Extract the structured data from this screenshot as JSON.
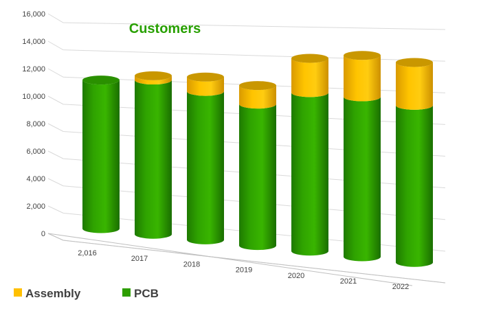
{
  "chart_data": {
    "type": "bar",
    "style": "3d-stacked-cylinder",
    "title": "Customers",
    "categories": [
      "2,016",
      "2017",
      "2018",
      "2019",
      "2020",
      "2021",
      "2022"
    ],
    "series": [
      {
        "name": "PCB",
        "color": "#2d9e00",
        "values": [
          10400,
          10800,
          10400,
          9900,
          11100,
          11200,
          11000
        ]
      },
      {
        "name": "Assembly",
        "color": "#ffc000",
        "values": [
          0,
          300,
          1000,
          1300,
          2400,
          2900,
          3000
        ]
      }
    ],
    "ylim": [
      0,
      16000
    ],
    "y_ticks": [
      "0",
      "2,000",
      "4,000",
      "6,000",
      "8,000",
      "10,000",
      "12,000",
      "14,000",
      "16,000"
    ],
    "grid": true,
    "legend_position": "bottom-left",
    "legend": [
      {
        "label": "Assembly",
        "color": "#ffc000"
      },
      {
        "label": "PCB",
        "color": "#2d9e00"
      }
    ]
  }
}
